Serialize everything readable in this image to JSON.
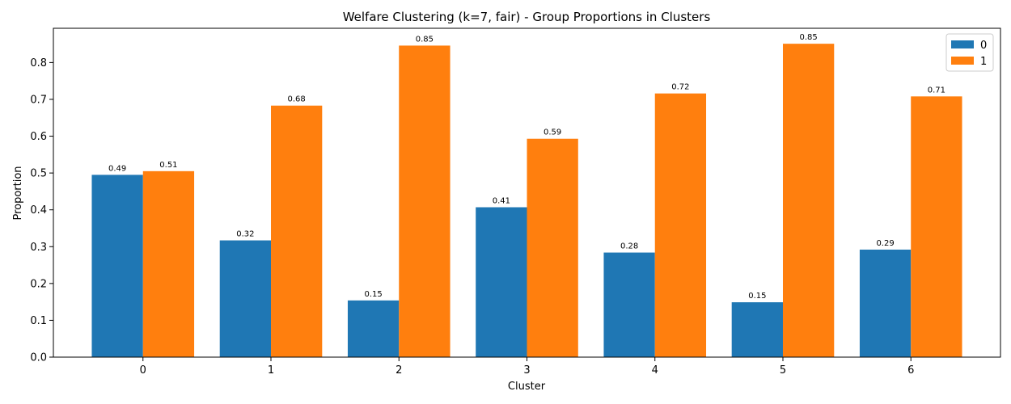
{
  "chart_data": {
    "type": "bar",
    "title": "Welfare Clustering (k=7, fair) - Group Proportions in Clusters",
    "xlabel": "Cluster",
    "ylabel": "Proportion",
    "categories": [
      "0",
      "1",
      "2",
      "3",
      "4",
      "5",
      "6"
    ],
    "series": [
      {
        "name": "0",
        "color": "#1f77b4",
        "values": [
          0.495,
          0.317,
          0.154,
          0.407,
          0.284,
          0.149,
          0.292
        ],
        "labels": [
          "0.49",
          "0.32",
          "0.15",
          "0.41",
          "0.28",
          "0.15",
          "0.29"
        ]
      },
      {
        "name": "1",
        "color": "#ff7f0e",
        "values": [
          0.505,
          0.683,
          0.846,
          0.593,
          0.716,
          0.851,
          0.708
        ],
        "labels": [
          "0.51",
          "0.68",
          "0.85",
          "0.59",
          "0.72",
          "0.85",
          "0.71"
        ]
      }
    ],
    "ylim": [
      0,
      0.893
    ],
    "yticks": [
      "0.0",
      "0.1",
      "0.2",
      "0.3",
      "0.4",
      "0.5",
      "0.6",
      "0.7",
      "0.8"
    ],
    "grid": false,
    "legend_position": "top-right"
  }
}
